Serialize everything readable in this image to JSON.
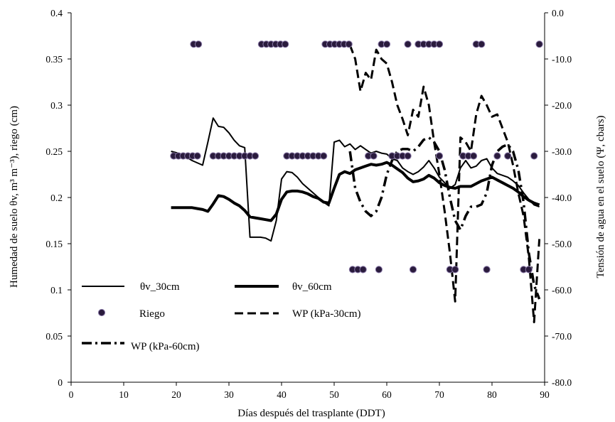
{
  "chart_data": {
    "type": "line",
    "xlabel": "Días después del trasplante (DDT)",
    "ylabel_left": "Humedad de suelo θv, m³ m⁻³), riego (cm)",
    "ylabel_right": "Tensión de agua en el suelo (Ψ, cbars)",
    "xlim": [
      0,
      90
    ],
    "ylim_left": [
      0,
      0.4
    ],
    "ylim_right": [
      -80,
      0
    ],
    "x_ticks": [
      "0",
      "10",
      "20",
      "30",
      "40",
      "50",
      "60",
      "70",
      "80",
      "90"
    ],
    "y_left_ticks": [
      "0",
      "0.05",
      "0.1",
      "0.15",
      "0.2",
      "0.25",
      "0.3",
      "0.35",
      "0.4"
    ],
    "y_right_ticks": [
      "-80.0",
      "-70.0",
      "-60.0",
      "-50.0",
      "-40.0",
      "-30.0",
      "-20.0",
      "-10.0",
      "0.0"
    ],
    "grid": false,
    "legend": [
      {
        "label": "θv_30cm",
        "style": "thin-solid"
      },
      {
        "label": "θv_60cm",
        "style": "thick-solid"
      },
      {
        "label": "Riego",
        "style": "marker"
      },
      {
        "label": "WP (kPa-30cm)",
        "style": "dashed"
      },
      {
        "label": "WP (kPa-60cm)",
        "style": "dash-dot"
      }
    ],
    "series": [
      {
        "name": "θv_30cm",
        "axis": "left",
        "x": [
          19,
          21,
          23,
          25,
          26,
          27,
          28,
          29,
          30,
          31,
          32,
          33,
          34,
          35,
          36,
          37,
          38,
          39,
          40,
          41,
          42,
          43,
          44,
          45,
          46,
          47,
          48,
          49,
          50,
          51,
          52,
          53,
          54,
          55,
          56,
          57,
          58,
          59,
          60,
          61,
          62,
          63,
          64,
          65,
          66,
          67,
          68,
          69,
          70,
          71,
          72,
          73,
          74,
          75,
          76,
          77,
          78,
          79,
          80,
          81,
          82,
          83,
          84,
          85,
          86,
          87,
          88,
          89
        ],
        "y": [
          0.25,
          0.247,
          0.24,
          0.235,
          0.26,
          0.286,
          0.277,
          0.276,
          0.27,
          0.262,
          0.256,
          0.254,
          0.157,
          0.157,
          0.157,
          0.156,
          0.153,
          0.175,
          0.22,
          0.228,
          0.227,
          0.222,
          0.215,
          0.21,
          0.205,
          0.2,
          0.195,
          0.191,
          0.26,
          0.262,
          0.255,
          0.258,
          0.252,
          0.256,
          0.252,
          0.248,
          0.25,
          0.248,
          0.247,
          0.242,
          0.24,
          0.232,
          0.228,
          0.225,
          0.228,
          0.233,
          0.24,
          0.232,
          0.222,
          0.216,
          0.21,
          0.214,
          0.232,
          0.24,
          0.232,
          0.234,
          0.24,
          0.242,
          0.232,
          0.226,
          0.224,
          0.222,
          0.218,
          0.213,
          0.205,
          0.198,
          0.192,
          0.19
        ]
      },
      {
        "name": "θv_60cm",
        "axis": "left",
        "x": [
          19,
          21,
          23,
          24,
          25,
          26,
          27,
          28,
          29,
          30,
          31,
          32,
          33,
          34,
          35,
          36,
          37,
          38,
          39,
          40,
          41,
          42,
          43,
          44,
          45,
          46,
          47,
          48,
          49,
          50,
          51,
          52,
          53,
          54,
          55,
          56,
          57,
          58,
          59,
          60,
          61,
          62,
          63,
          64,
          65,
          66,
          67,
          68,
          69,
          70,
          71,
          72,
          73,
          74,
          75,
          76,
          77,
          78,
          79,
          80,
          81,
          82,
          83,
          84,
          85,
          86,
          87,
          88,
          89
        ],
        "y": [
          0.189,
          0.189,
          0.189,
          0.188,
          0.187,
          0.185,
          0.193,
          0.202,
          0.201,
          0.198,
          0.194,
          0.191,
          0.186,
          0.179,
          0.178,
          0.177,
          0.176,
          0.175,
          0.182,
          0.198,
          0.206,
          0.207,
          0.207,
          0.206,
          0.204,
          0.201,
          0.199,
          0.195,
          0.194,
          0.21,
          0.225,
          0.228,
          0.226,
          0.23,
          0.232,
          0.234,
          0.236,
          0.235,
          0.236,
          0.238,
          0.235,
          0.231,
          0.227,
          0.221,
          0.217,
          0.218,
          0.22,
          0.224,
          0.221,
          0.216,
          0.213,
          0.211,
          0.21,
          0.212,
          0.212,
          0.212,
          0.215,
          0.218,
          0.22,
          0.222,
          0.219,
          0.216,
          0.213,
          0.21,
          0.206,
          0.201,
          0.197,
          0.194,
          0.192
        ]
      },
      {
        "name": "WP (kPa-30cm)",
        "axis": "right",
        "x": [
          53,
          54,
          55,
          56,
          57,
          58,
          59,
          60,
          61,
          62,
          63,
          64,
          65,
          66,
          67,
          68,
          69,
          70,
          71,
          72,
          73,
          74,
          75,
          76,
          77,
          78,
          79,
          80,
          81,
          82,
          83,
          84,
          85,
          86,
          87,
          88,
          89
        ],
        "y": [
          -7,
          -10,
          -17,
          -13,
          -14.5,
          -8,
          -10,
          -11,
          -15,
          -20,
          -23,
          -26.5,
          -21,
          -22.5,
          -16,
          -20,
          -28,
          -35,
          -43,
          -52,
          -62.5,
          -27,
          -28,
          -30,
          -22,
          -18,
          -20,
          -22.5,
          -22,
          -25,
          -28,
          -33,
          -39,
          -44,
          -53,
          -67,
          -49
        ]
      },
      {
        "name": "WP (kPa-60cm)",
        "axis": "right",
        "x": [
          53,
          54,
          55,
          56,
          57,
          58,
          59,
          60,
          61,
          62,
          63,
          64,
          65,
          66,
          67,
          68,
          69,
          70,
          71,
          72,
          73,
          74,
          75,
          76,
          77,
          78,
          79,
          80,
          81,
          82,
          83,
          84,
          85,
          86,
          87,
          88,
          89
        ],
        "y": [
          -30,
          -38,
          -41,
          -43,
          -44,
          -43,
          -40,
          -35,
          -32,
          -30,
          -29.5,
          -29.5,
          -30,
          -29,
          -27.5,
          -27,
          -28,
          -30,
          -34,
          -40,
          -45,
          -47,
          -44,
          -42,
          -42,
          -41.5,
          -39,
          -33,
          -30,
          -29,
          -28.5,
          -30,
          -34,
          -41,
          -52,
          -59,
          -62
        ]
      },
      {
        "name": "Riego",
        "axis": "left",
        "type": "scatter",
        "x": [
          23.3,
          24.2,
          36.2,
          37.1,
          38,
          38.9,
          39.8,
          40.7,
          48.3,
          49.2,
          50.1,
          51,
          51.9,
          52.8,
          59,
          60,
          64,
          66,
          67,
          68,
          69,
          70,
          77,
          78,
          89,
          19.5,
          20.4,
          21.3,
          22.2,
          23.1,
          24,
          27,
          28,
          29,
          30,
          31,
          32,
          33,
          34,
          35,
          41,
          42,
          43,
          44,
          45,
          46,
          47,
          48,
          56.5,
          57.5,
          61,
          62,
          63,
          64,
          70,
          74.5,
          75.5,
          76.5,
          81,
          83,
          88,
          53.5,
          54.5,
          55.5,
          58.5,
          65,
          72,
          73,
          79,
          86,
          87
        ],
        "y": [
          0.366,
          0.366,
          0.366,
          0.366,
          0.366,
          0.366,
          0.366,
          0.366,
          0.366,
          0.366,
          0.366,
          0.366,
          0.366,
          0.366,
          0.366,
          0.366,
          0.366,
          0.366,
          0.366,
          0.366,
          0.366,
          0.366,
          0.366,
          0.366,
          0.366,
          0.245,
          0.245,
          0.245,
          0.245,
          0.245,
          0.245,
          0.245,
          0.245,
          0.245,
          0.245,
          0.245,
          0.245,
          0.245,
          0.245,
          0.245,
          0.245,
          0.245,
          0.245,
          0.245,
          0.245,
          0.245,
          0.245,
          0.245,
          0.245,
          0.245,
          0.245,
          0.245,
          0.245,
          0.245,
          0.245,
          0.245,
          0.245,
          0.245,
          0.245,
          0.245,
          0.245,
          0.122,
          0.122,
          0.122,
          0.122,
          0.122,
          0.122,
          0.122,
          0.122,
          0.122,
          0.122
        ]
      }
    ]
  }
}
